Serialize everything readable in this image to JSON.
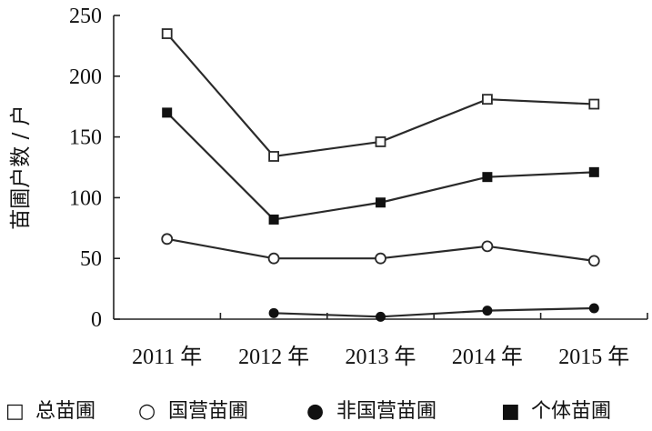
{
  "chart_data": {
    "type": "line",
    "title": "",
    "xlabel": "",
    "ylabel": "苗圃户数 / 户",
    "categories": [
      "2011 年",
      "2012 年",
      "2013 年",
      "2014 年",
      "2015 年"
    ],
    "ylim": [
      0,
      250
    ],
    "yticks": [
      0,
      50,
      100,
      150,
      200,
      250
    ],
    "grid": false,
    "legend_position": "bottom",
    "series": [
      {
        "name": "总苗圃",
        "marker": "open-square",
        "values": [
          235,
          134,
          146,
          181,
          177
        ]
      },
      {
        "name": "国营苗圃",
        "marker": "open-circle",
        "values": [
          66,
          50,
          50,
          60,
          48
        ]
      },
      {
        "name": "非国营苗圃",
        "marker": "filled-circle",
        "values": [
          null,
          5,
          2,
          7,
          9
        ]
      },
      {
        "name": "个体苗圃",
        "marker": "filled-square",
        "values": [
          170,
          82,
          96,
          117,
          121
        ]
      }
    ],
    "legend": [
      {
        "symbol": "□",
        "label": "总苗圃"
      },
      {
        "symbol": "○",
        "label": "国营苗圃"
      },
      {
        "symbol": "●",
        "label": "非国营苗圃"
      },
      {
        "symbol": "■",
        "label": "个体苗圃"
      }
    ]
  }
}
